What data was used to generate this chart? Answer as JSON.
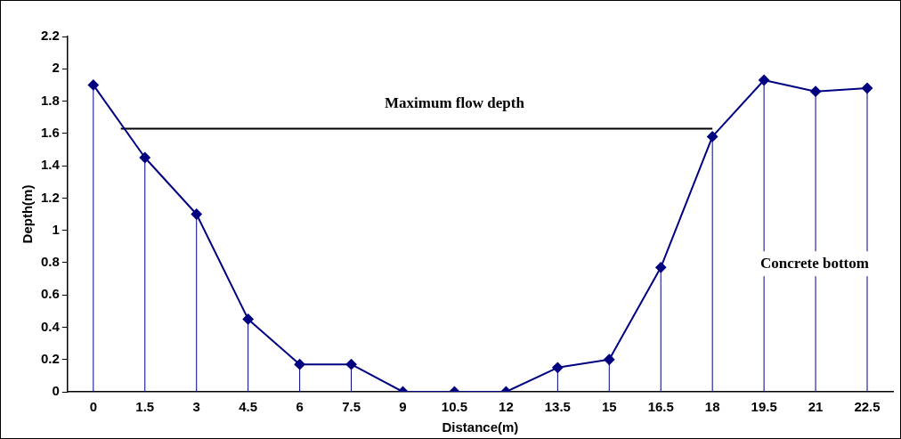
{
  "chart_data": {
    "type": "line",
    "xlabel": "Distance(m)",
    "ylabel": "Depth(m)",
    "xlim": [
      -0.75,
      23.25
    ],
    "xticks": [
      0,
      1.5,
      3,
      4.5,
      6,
      7.5,
      9,
      10.5,
      12,
      13.5,
      15,
      16.5,
      18,
      19.5,
      21,
      22.5
    ],
    "ylim": [
      0,
      2.2
    ],
    "yticks": [
      0,
      0.2,
      0.4,
      0.6,
      0.8,
      1,
      1.2,
      1.4,
      1.6,
      1.8,
      2,
      2.2
    ],
    "series": [
      {
        "color": "#000080",
        "marker": "diamond",
        "x": [
          0,
          1.5,
          3,
          4.5,
          6,
          7.5,
          9,
          10.5,
          12,
          13.5,
          15,
          16.5,
          18,
          19.5,
          21,
          22.5
        ],
        "values": [
          1.9,
          1.45,
          1.1,
          0.45,
          0.17,
          0.17,
          0,
          0,
          0,
          0.15,
          0.2,
          0.77,
          1.58,
          1.93,
          1.86,
          1.88
        ],
        "errors": [
          [
            0,
            1.9
          ],
          [
            0,
            1.45
          ],
          [
            0,
            1.1
          ],
          [
            0,
            0.45
          ],
          [
            0,
            0.17
          ],
          [
            0,
            0.17
          ],
          [
            0,
            0
          ],
          [
            0,
            0
          ],
          [
            0,
            0
          ],
          [
            0,
            0.15
          ],
          [
            0,
            0.2
          ],
          [
            0,
            0.77
          ],
          [
            0,
            1.58
          ],
          [
            0,
            1.93
          ],
          [
            0,
            1.86
          ],
          [
            0,
            1.88
          ]
        ]
      },
      {
        "color": "#000000",
        "marker": "none",
        "x": [
          0.8,
          18
        ],
        "values": [
          1.63,
          1.63
        ]
      }
    ],
    "annotations": [
      {
        "text": "Maximum flow depth",
        "x": 10.5,
        "y": 1.63
      },
      "Concrete bottom"
    ],
    "grid": false,
    "legend": false
  }
}
